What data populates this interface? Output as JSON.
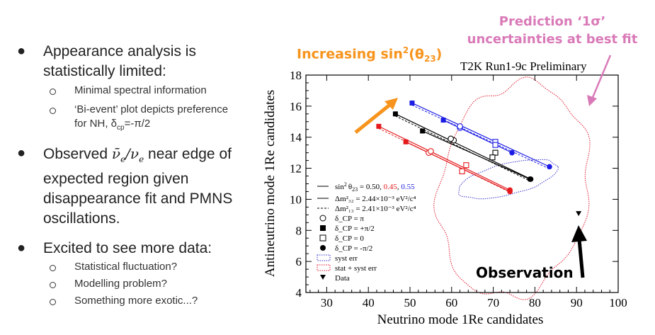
{
  "bullets": {
    "b1": {
      "text": "Appearance analysis is statistically limited:"
    },
    "b1_sub": [
      "Minimal spectral information",
      "‘Bi-event’ plot depicts preference for NH, δ",
      "cp",
      "=-π/2"
    ],
    "b2": {
      "pre": "Observed ",
      "post": " near edge of expected region given disappearance fit and PMNS oscillations."
    },
    "b3": {
      "text": "Excited to see more data:"
    },
    "b3_sub": [
      "Statistical fluctuation?",
      "Modelling problem?",
      "Something more exotic...?"
    ]
  },
  "annotations": {
    "increasing": {
      "pre": "Increasing sin",
      "sup": "2",
      "mid": "(θ",
      "sub": "23",
      "post": ")",
      "color": "#f7941d"
    },
    "prediction": {
      "line1": "Prediction ‘1σ’",
      "line2": "uncertainties at best fit",
      "color": "#d97ab8"
    },
    "observation": {
      "text": "Observation"
    }
  },
  "chart_data": {
    "type": "scatter",
    "title": "T2K Run1-9c Preliminary",
    "xlabel": "Neutrino mode 1Re candidates",
    "ylabel": "Antineutrino mode 1Re candidates",
    "xlim": [
      25,
      100
    ],
    "ylim": [
      4,
      18
    ],
    "xticks": [
      30,
      40,
      50,
      60,
      70,
      80,
      90,
      100
    ],
    "yticks": [
      4,
      6,
      8,
      10,
      12,
      14,
      16,
      18
    ],
    "series": [
      {
        "sin2": "0.50",
        "color": "#000000",
        "points": {
          "plus_half_pi": [
            46.5,
            15.5
          ],
          "pi": [
            60.5,
            13.8
          ],
          "zero": [
            70.5,
            13.0
          ],
          "minus_half_pi": [
            79.0,
            11.3
          ]
        },
        "points_ih": {
          "plus_half_pi": [
            53.0,
            14.4
          ],
          "pi": [
            59.8,
            13.9
          ],
          "zero": [
            69.8,
            12.7
          ],
          "minus_half_pi": [
            78.8,
            11.3
          ]
        }
      },
      {
        "sin2": "0.45",
        "color": "#e41a1c",
        "points": {
          "plus_half_pi": [
            42.5,
            14.7
          ],
          "pi": [
            54.5,
            13.0
          ],
          "zero": [
            63.5,
            12.2
          ],
          "minus_half_pi": [
            74.0,
            10.6
          ]
        },
        "points_ih": {
          "plus_half_pi": [
            49.0,
            13.7
          ],
          "pi": [
            55.0,
            13.1
          ],
          "zero": [
            62.5,
            11.8
          ],
          "minus_half_pi": [
            74.0,
            10.5
          ]
        }
      },
      {
        "sin2": "0.55",
        "color": "#1c1ce4",
        "points": {
          "plus_half_pi": [
            50.5,
            16.2
          ],
          "pi": [
            62.0,
            14.6
          ],
          "zero": [
            70.5,
            13.7
          ],
          "minus_half_pi": [
            83.5,
            12.1
          ]
        },
        "points_ih": {
          "plus_half_pi": [
            58.0,
            15.1
          ],
          "pi": [
            62.0,
            14.7
          ],
          "zero": [
            70.5,
            13.5
          ],
          "minus_half_pi": [
            74.5,
            13.0
          ]
        }
      }
    ],
    "data_point": [
      90.5,
      9.1
    ],
    "legend": {
      "sin2_label": "sin",
      "sin2_sup": "2",
      "sin2_theta": "θ",
      "sin2_sub": "23",
      "sin2_eq": " = ",
      "entries": [
        "Δm²₃₂ = 2.44×10⁻³ eV²/c⁴",
        "Δm²₁₃ = 2.41×10⁻³ eV²/c⁴",
        "δ_CP = π",
        "δ_CP = +π/2",
        "δ_CP = 0",
        "δ_CP = -π/2",
        "syst err",
        "stat + syst err",
        "Data"
      ]
    },
    "ellipses": {
      "syst": {
        "color": "#3333cc"
      },
      "stat_syst": {
        "color": "#e0182d"
      }
    }
  }
}
